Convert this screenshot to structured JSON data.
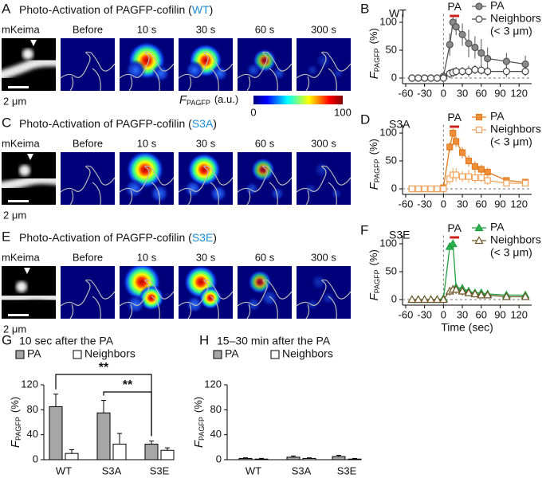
{
  "image_panels": [
    {
      "panel": "A",
      "title": [
        "Photo-Activation of PAGFP-cofilin (",
        "WT",
        ")"
      ],
      "images": [
        "mKeima",
        "Before",
        "10 s",
        "30 s",
        "60 s",
        "300 s"
      ],
      "scale_bar": "2 μm"
    },
    {
      "panel": "C",
      "title": [
        "Photo-Activation of PAGFP-cofilin (",
        "S3A",
        ")"
      ],
      "images": [
        "mKeima",
        "Before",
        "10 s",
        "30 s",
        "60 s",
        "300 s"
      ],
      "scale_bar": "2 μm"
    },
    {
      "panel": "E",
      "title": [
        "Photo-Activation of PAGFP-cofilin (",
        "S3E",
        ")"
      ],
      "images": [
        "mKeima",
        "Before",
        "10 s",
        "30 s",
        "60 s",
        "300 s"
      ],
      "scale_bar": "2 μm"
    }
  ],
  "colorbar": {
    "label": {
      "symbol": "F",
      "subscript": "PAGFP",
      "unit": "(a.u.)"
    },
    "min": 0,
    "max": 100
  },
  "chart_data": [
    {
      "type": "line",
      "panel": "B",
      "inset_label": "WT",
      "stimulus_label": "PA",
      "stimulus_period": [
        10,
        25
      ],
      "ylabel": {
        "symbol": "F",
        "subscript": "PAGFP",
        "unit": "(%)"
      },
      "x": [
        -50,
        -40,
        -30,
        -20,
        -10,
        0,
        10,
        15,
        20,
        30,
        40,
        50,
        60,
        70,
        100,
        130
      ],
      "xlim": [
        -65,
        140
      ],
      "xticks": [
        -60,
        -30,
        0,
        30,
        60,
        90,
        120
      ],
      "ylim": [
        -10,
        115
      ],
      "yticks": [
        0,
        50,
        100
      ],
      "legend_note": "(< 3 μm)",
      "series": [
        {
          "name": "PA",
          "color": "#555555",
          "fill": "#8a8a8a",
          "marker": "circle",
          "values": [
            0,
            0,
            0,
            0,
            0,
            3,
            60,
            100,
            92,
            78,
            62,
            55,
            45,
            35,
            30,
            25
          ],
          "errors": [
            3,
            3,
            3,
            3,
            3,
            3,
            20,
            10,
            15,
            20,
            25,
            20,
            25,
            20,
            15,
            15
          ]
        },
        {
          "name": "Neighbors",
          "color": "#444444",
          "fill": "#ffffff",
          "marker": "circle",
          "values": [
            0,
            0,
            0,
            0,
            0,
            0,
            8,
            10,
            12,
            12,
            12,
            15,
            14,
            12,
            12,
            12
          ],
          "errors": [
            2,
            2,
            2,
            2,
            2,
            2,
            8,
            8,
            8,
            8,
            10,
            8,
            8,
            8,
            10,
            8
          ]
        }
      ]
    },
    {
      "type": "line",
      "panel": "D",
      "inset_label": "S3A",
      "stimulus_label": "PA",
      "stimulus_period": [
        10,
        25
      ],
      "ylabel": {
        "symbol": "F",
        "subscript": "PAGFP",
        "unit": "(%)"
      },
      "x": [
        -50,
        -40,
        -30,
        -20,
        -10,
        0,
        10,
        15,
        20,
        30,
        40,
        50,
        60,
        70,
        100,
        130
      ],
      "xlim": [
        -65,
        140
      ],
      "xticks": [
        -60,
        -30,
        0,
        30,
        60,
        90,
        120
      ],
      "ylim": [
        -10,
        115
      ],
      "yticks": [
        0,
        50,
        100
      ],
      "legend_note": "(< 3 μm)",
      "series": [
        {
          "name": "PA",
          "color": "#e07b1f",
          "fill": "#f0903a",
          "marker": "square",
          "values": [
            0,
            0,
            0,
            0,
            0,
            2,
            75,
            100,
            85,
            65,
            50,
            40,
            35,
            30,
            15,
            12
          ],
          "errors": [
            3,
            3,
            3,
            3,
            3,
            3,
            8,
            8,
            10,
            10,
            10,
            10,
            8,
            8,
            5,
            5
          ]
        },
        {
          "name": "Neighbors",
          "color": "#f2a35a",
          "fill": "#ffffff",
          "marker": "square",
          "values": [
            0,
            0,
            0,
            0,
            0,
            0,
            18,
            25,
            25,
            22,
            22,
            20,
            20,
            15,
            10,
            10
          ],
          "errors": [
            3,
            3,
            3,
            3,
            3,
            3,
            10,
            12,
            12,
            10,
            12,
            10,
            8,
            8,
            5,
            5
          ]
        }
      ]
    },
    {
      "type": "line",
      "panel": "F",
      "inset_label": "S3E",
      "stimulus_label": "PA",
      "stimulus_period": [
        10,
        25
      ],
      "ylabel": {
        "symbol": "F",
        "subscript": "PAGFP",
        "unit": "(%)"
      },
      "xlabel": "Time (sec)",
      "x": [
        -50,
        -40,
        -30,
        -20,
        -10,
        0,
        10,
        15,
        20,
        30,
        40,
        50,
        60,
        70,
        100,
        130
      ],
      "xlim": [
        -65,
        140
      ],
      "xticks": [
        -60,
        -30,
        0,
        30,
        60,
        90,
        120
      ],
      "ylim": [
        -10,
        115
      ],
      "yticks": [
        0,
        50,
        100
      ],
      "legend_note": "(< 3 μm)",
      "series": [
        {
          "name": "PA",
          "color": "#1f9e40",
          "fill": "#2cb34f",
          "marker": "triangle",
          "values": [
            0,
            0,
            0,
            0,
            0,
            2,
            95,
            100,
            22,
            20,
            15,
            12,
            12,
            10,
            8,
            8
          ],
          "errors": [
            3,
            3,
            3,
            3,
            3,
            3,
            5,
            5,
            8,
            8,
            8,
            5,
            5,
            5,
            3,
            3
          ]
        },
        {
          "name": "Neighbors",
          "color": "#6e5326",
          "fill": "#ffffff",
          "marker": "triangle",
          "values": [
            0,
            0,
            0,
            0,
            0,
            0,
            15,
            18,
            18,
            15,
            12,
            10,
            8,
            8,
            5,
            5
          ],
          "errors": [
            3,
            3,
            3,
            3,
            3,
            3,
            8,
            8,
            8,
            8,
            6,
            5,
            5,
            5,
            3,
            3
          ]
        }
      ]
    },
    {
      "type": "bar",
      "panel": "G",
      "title": "10 sec after the PA",
      "ylabel": {
        "symbol": "F",
        "subscript": "PAGFP",
        "unit": "(%)"
      },
      "categories": [
        "WT",
        "S3A",
        "S3E"
      ],
      "ylim": [
        0,
        120
      ],
      "yticks": [
        0,
        40,
        80,
        120
      ],
      "series": [
        {
          "name": "PA",
          "color": "#a6a6a6",
          "values": [
            85,
            75,
            25
          ],
          "errors": [
            20,
            20,
            5
          ]
        },
        {
          "name": "Neighbors",
          "color": "#ffffff",
          "values": [
            10,
            25,
            15
          ],
          "errors": [
            6,
            17,
            4
          ]
        }
      ],
      "significance": [
        "**",
        "**"
      ]
    },
    {
      "type": "bar",
      "panel": "H",
      "title": "15–30 min after the PA",
      "ylabel": {
        "symbol": "F",
        "subscript": "PAGFP",
        "unit": "(%)"
      },
      "categories": [
        "WT",
        "S3A",
        "S3E"
      ],
      "ylim": [
        0,
        120
      ],
      "yticks": [
        0,
        40,
        80,
        120
      ],
      "series": [
        {
          "name": "PA",
          "color": "#a6a6a6",
          "values": [
            2,
            4,
            5
          ],
          "errors": [
            1,
            2,
            2
          ]
        },
        {
          "name": "Neighbors",
          "color": "#ffffff",
          "values": [
            1,
            2,
            1
          ],
          "errors": [
            1,
            1,
            1
          ]
        }
      ],
      "significance": []
    }
  ]
}
